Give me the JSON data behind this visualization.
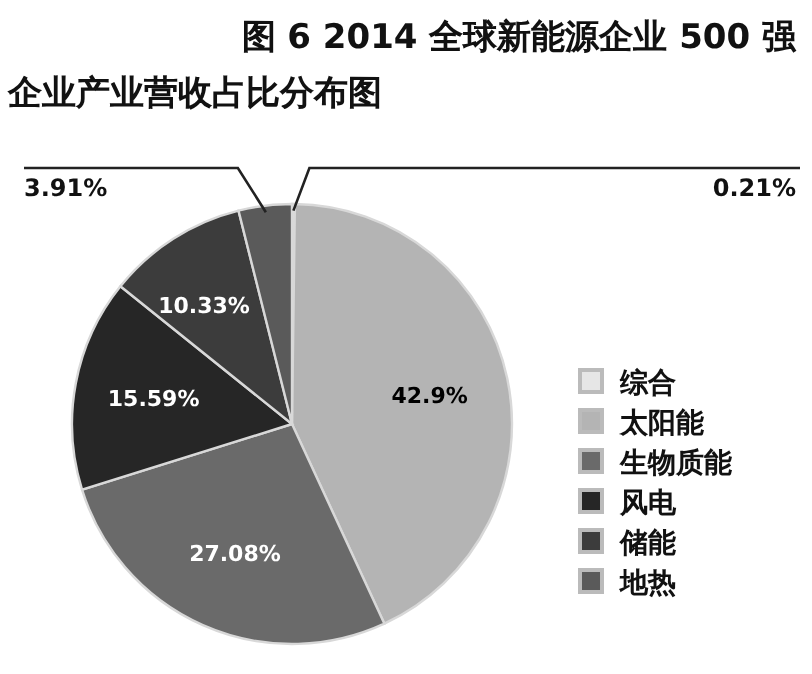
{
  "chart_data": {
    "type": "pie",
    "title": "图 6  2014 全球新能源企业 500 强",
    "subtitle": "企业产业营收占比分布图",
    "categories": [
      "综合",
      "太阳能",
      "生物质能",
      "风电",
      "储能",
      "地热"
    ],
    "values": [
      0.21,
      42.9,
      27.08,
      15.59,
      10.33,
      3.91
    ],
    "value_labels": [
      "0.21%",
      "42.9%",
      "27.08%",
      "15.59%",
      "10.33%",
      "3.91%"
    ],
    "colors": [
      "#e6e6e6",
      "#b4b4b4",
      "#6a6a6a",
      "#262626",
      "#3c3c3c",
      "#5a5a5a"
    ],
    "legend": "right"
  }
}
